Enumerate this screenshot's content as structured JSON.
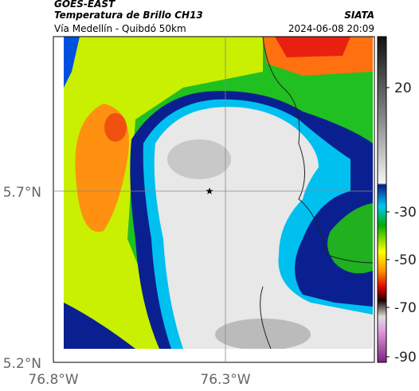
{
  "header": {
    "satellite": "GOES-EAST",
    "product": "Temperatura de Brillo CH13",
    "source": "SIATA",
    "subtitle": "Vía Medellín - Quibdó 50km",
    "timestamp": "2024-06-08 20:09"
  },
  "map": {
    "lat_labels": [
      "5.7°N",
      "5.2°N"
    ],
    "lon_labels": [
      "76.8°W",
      "76.3°W"
    ]
  },
  "colorbar": {
    "labels": [
      "20",
      "-30",
      "-50",
      "-70",
      "-90"
    ]
  }
}
